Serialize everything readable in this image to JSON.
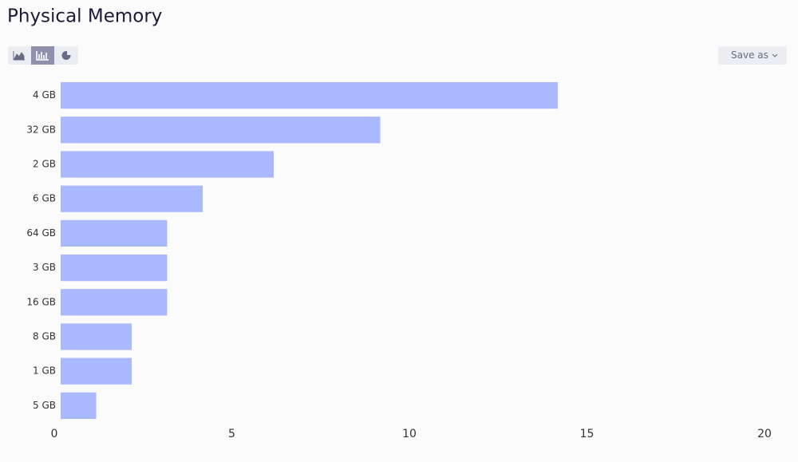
{
  "chart_data": {
    "type": "bar",
    "orientation": "horizontal",
    "title": "Physical Memory",
    "categories": [
      "4 GB",
      "32 GB",
      "2 GB",
      "6 GB",
      "64 GB",
      "3 GB",
      "16 GB",
      "8 GB",
      "1 GB",
      "5 GB"
    ],
    "values": [
      14,
      9,
      6,
      4,
      3,
      3,
      3,
      2,
      2,
      1
    ],
    "color": "#aab9fd",
    "xlim": [
      0,
      20
    ],
    "xticks": [
      0,
      5,
      10,
      15,
      20
    ],
    "grid": false
  },
  "toolbar": {
    "save_button": "Save as"
  }
}
